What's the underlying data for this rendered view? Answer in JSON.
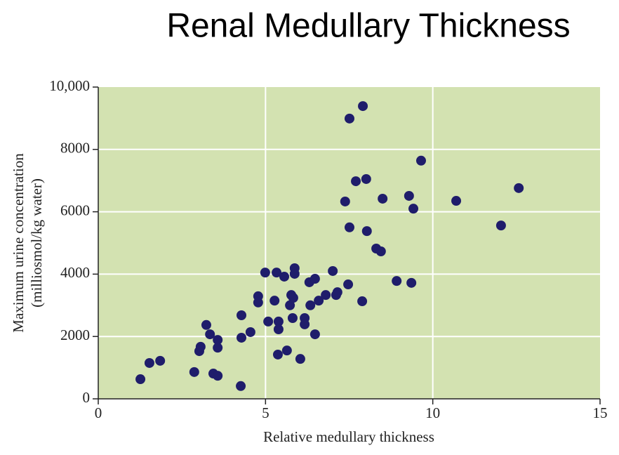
{
  "chart_data": {
    "type": "scatter",
    "title": "Renal Medullary Thickness",
    "xlabel": "Relative medullary thickness",
    "ylabel": [
      "Maximum urine concentration",
      "(milliosmol/kg water)"
    ],
    "xlim": [
      0,
      15
    ],
    "xticks": [
      0,
      5,
      10,
      15
    ],
    "ylim": [
      0,
      10000
    ],
    "yticks": [
      0,
      2000,
      4000,
      6000,
      8000,
      {
        "value": 10000,
        "label": "10,000"
      }
    ],
    "grid": true,
    "background": "#d3e2b1",
    "color": "#1f1d6b",
    "x": [
      1.26,
      1.53,
      1.85,
      2.87,
      3.02,
      3.06,
      3.23,
      3.34,
      3.44,
      3.57,
      3.57,
      3.57,
      4.26,
      4.28,
      4.28,
      4.55,
      4.78,
      4.78,
      4.99,
      5.08,
      5.27,
      5.33,
      5.37,
      5.39,
      5.39,
      5.56,
      5.64,
      5.73,
      5.77,
      5.83,
      5.81,
      5.87,
      5.87,
      6.04,
      6.17,
      6.17,
      6.31,
      6.34,
      6.48,
      6.48,
      6.59,
      6.8,
      7.01,
      7.11,
      7.15,
      7.38,
      7.47,
      7.51,
      7.51,
      7.7,
      7.89,
      7.91,
      8.01,
      8.03,
      8.31,
      8.45,
      8.5,
      8.92,
      9.29,
      9.36,
      9.42,
      9.65,
      10.7,
      12.04,
      12.57
    ],
    "y": [
      630,
      1150,
      1220,
      860,
      1530,
      1670,
      2370,
      2070,
      810,
      740,
      1890,
      1640,
      410,
      2680,
      1960,
      2140,
      3290,
      3090,
      4050,
      2480,
      3150,
      4050,
      1420,
      2480,
      2230,
      3920,
      1550,
      3000,
      3330,
      3240,
      2590,
      4190,
      4010,
      1280,
      2590,
      2390,
      3740,
      3000,
      3850,
      2070,
      3150,
      3330,
      4100,
      3330,
      3420,
      6330,
      3670,
      8990,
      5500,
      6980,
      3130,
      9390,
      7050,
      5380,
      4820,
      4730,
      6420,
      3780,
      6510,
      3720,
      6100,
      7640,
      6350,
      5560,
      6760
    ]
  }
}
